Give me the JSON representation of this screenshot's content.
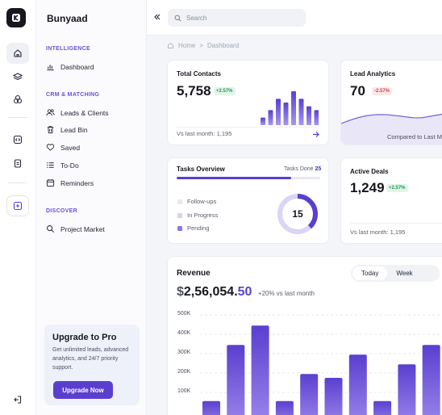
{
  "app": {
    "name": "Bunyaad"
  },
  "sidebar": {
    "sections": [
      {
        "title": "INTELLIGENCE",
        "items": [
          {
            "label": "Dashboard",
            "icon": "bar-chart-icon"
          }
        ]
      },
      {
        "title": "CRM & MATCHING",
        "items": [
          {
            "label": "Leads & Clients",
            "icon": "users-icon"
          },
          {
            "label": "Lead Bin",
            "icon": "trash-icon"
          },
          {
            "label": "Saved",
            "icon": "heart-icon"
          },
          {
            "label": "To-Do",
            "icon": "list-icon"
          },
          {
            "label": "Reminders",
            "icon": "calendar-icon"
          }
        ]
      },
      {
        "title": "DISCOVER",
        "items": [
          {
            "label": "Project Market",
            "icon": "search-icon"
          }
        ]
      }
    ],
    "upgrade": {
      "title": "Upgrade to Pro",
      "text": "Get unlimited leads, advanced analytics, and 24/7 priority support.",
      "button": "Upgrade Now"
    }
  },
  "search": {
    "placeholder": "Search"
  },
  "breadcrumb": {
    "home": "Home",
    "current": "Dashboard"
  },
  "total_contacts": {
    "title": "Total Contacts",
    "value": "5,758",
    "change": "+2.57%",
    "footer": "Vs last month: 1,195",
    "bars": [
      2,
      4,
      7,
      6,
      9,
      7,
      5,
      4
    ]
  },
  "lead_analytics": {
    "title": "Lead Analytics",
    "value": "70",
    "change": "-2.57%",
    "footer": "Compared to Last M"
  },
  "tasks": {
    "title": "Tasks Overview",
    "done_label": "Tasks Done",
    "done_count": "25",
    "progress": 0.8,
    "legend": [
      {
        "label": "Follow-ups",
        "color": "#e6e8f0"
      },
      {
        "label": "In Progress",
        "color": "#d5d0f5"
      },
      {
        "label": "Pending",
        "color": "#8b77e3"
      }
    ],
    "donut_value": "15",
    "donut_share": 0.38
  },
  "active_deals": {
    "title": "Active Deals",
    "value": "1,249",
    "change": "+2.57%",
    "footer": "Vs last month: 1,195"
  },
  "revenue": {
    "title": "Revenue",
    "currency": "$",
    "amount_main": "2,56,054.",
    "amount_cents": "50",
    "delta_text": "+20% vs last month",
    "tabs": [
      "Today",
      "Week"
    ]
  },
  "colors": {
    "accent": "#5a3fcf",
    "bar": "#7a5ce6"
  },
  "chart_data": {
    "type": "bar",
    "y_tick_labels": [
      "500K",
      "400K",
      "300K",
      "200K",
      "100K"
    ],
    "ylim": [
      0,
      500
    ],
    "values": [
      55,
      345,
      445,
      55,
      195,
      175,
      295,
      55,
      245,
      345
    ],
    "grid": true
  }
}
